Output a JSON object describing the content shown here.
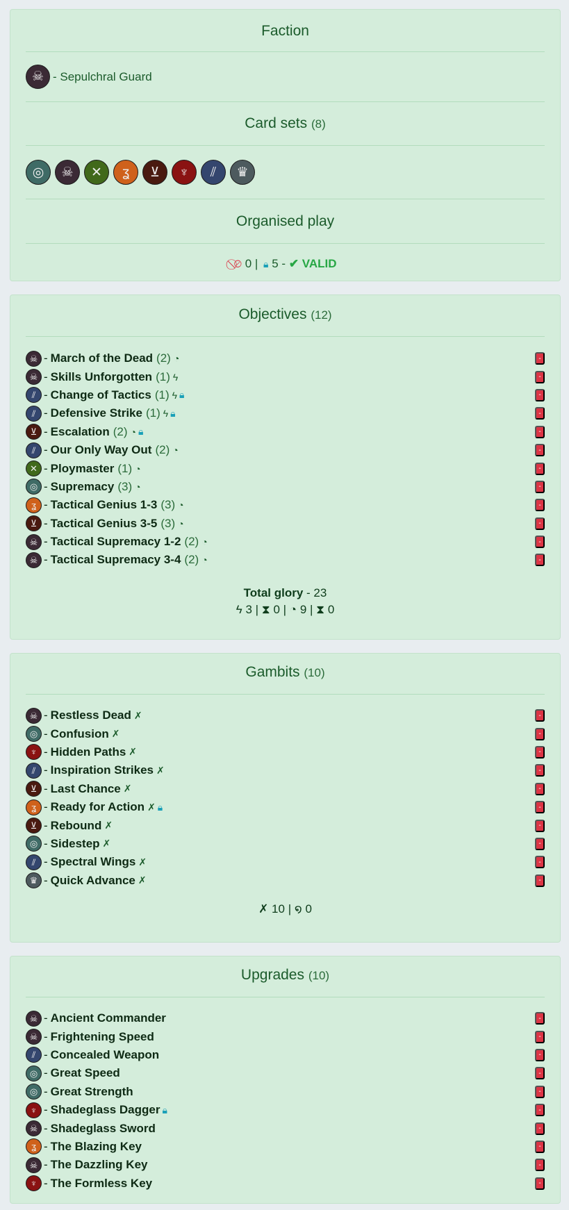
{
  "sets": {
    "target": {
      "icon": "target-icon",
      "color": "#3f6b66"
    },
    "skull": {
      "icon": "skull-icon",
      "color": "#3b2a35"
    },
    "axes": {
      "icon": "crossed-axes-icon",
      "color": "#41691b"
    },
    "zig": {
      "icon": "zigzag-icon",
      "color": "#cf611b"
    },
    "rune": {
      "icon": "rune-icon",
      "color": "#4a1a10"
    },
    "fang": {
      "icon": "fang-icon",
      "color": "#8a1212"
    },
    "bolt": {
      "icon": "bolt-icon",
      "color": "#34466e"
    },
    "crown": {
      "icon": "crown-icon",
      "color": "#4d5a5e"
    }
  },
  "faction": {
    "title": "Faction",
    "name": "- Sepulchral Guard",
    "set": "skull"
  },
  "card_sets": {
    "title": "Card sets",
    "count": "(8)",
    "items": [
      "target",
      "skull",
      "axes",
      "zig",
      "rune",
      "fang",
      "bolt",
      "crown"
    ]
  },
  "organised_play": {
    "title": "Organised play",
    "banned": "0",
    "restricted": "5",
    "status": "VALID",
    "colors": {
      "banned": "#dc3545",
      "restricted": "#1aa0b8",
      "valid": "#28a745"
    }
  },
  "objectives": {
    "title": "Objectives",
    "count": "(12)",
    "items": [
      {
        "set": "skull",
        "name": "March of the Dead",
        "glory": "(2)",
        "type": "end",
        "restricted": false
      },
      {
        "set": "skull",
        "name": "Skills Unforgotten",
        "glory": "(1)",
        "type": "surge",
        "restricted": false
      },
      {
        "set": "bolt",
        "name": "Change of Tactics",
        "glory": "(1)",
        "type": "surge",
        "restricted": true
      },
      {
        "set": "bolt",
        "name": "Defensive Strike",
        "glory": "(1)",
        "type": "surge",
        "restricted": true
      },
      {
        "set": "rune",
        "name": "Escalation",
        "glory": "(2)",
        "type": "end",
        "restricted": true
      },
      {
        "set": "bolt",
        "name": "Our Only Way Out",
        "glory": "(2)",
        "type": "end",
        "restricted": false
      },
      {
        "set": "axes",
        "name": "Ploymaster",
        "glory": "(1)",
        "type": "end",
        "restricted": false
      },
      {
        "set": "target",
        "name": "Supremacy",
        "glory": "(3)",
        "type": "end",
        "restricted": false
      },
      {
        "set": "zig",
        "name": "Tactical Genius 1-3",
        "glory": "(3)",
        "type": "end",
        "restricted": false
      },
      {
        "set": "rune",
        "name": "Tactical Genius 3-5",
        "glory": "(3)",
        "type": "end",
        "restricted": false
      },
      {
        "set": "skull",
        "name": "Tactical Supremacy 1-2",
        "glory": "(2)",
        "type": "end",
        "restricted": false
      },
      {
        "set": "skull",
        "name": "Tactical Supremacy 3-4",
        "glory": "(2)",
        "type": "end",
        "restricted": false
      }
    ],
    "total_label": "Total glory",
    "total": "- 23",
    "surge": "3",
    "third_start": "0",
    "end": "9",
    "third_end": "0"
  },
  "gambits": {
    "title": "Gambits",
    "count": "(10)",
    "items": [
      {
        "set": "skull",
        "name": "Restless Dead",
        "restricted": false
      },
      {
        "set": "target",
        "name": "Confusion",
        "restricted": false
      },
      {
        "set": "fang",
        "name": "Hidden Paths",
        "restricted": false
      },
      {
        "set": "bolt",
        "name": "Inspiration Strikes",
        "restricted": false
      },
      {
        "set": "rune",
        "name": "Last Chance",
        "restricted": false
      },
      {
        "set": "zig",
        "name": "Ready for Action",
        "restricted": true
      },
      {
        "set": "rune",
        "name": "Rebound",
        "restricted": false
      },
      {
        "set": "target",
        "name": "Sidestep",
        "restricted": false
      },
      {
        "set": "bolt",
        "name": "Spectral Wings",
        "restricted": false
      },
      {
        "set": "crown",
        "name": "Quick Advance",
        "restricted": false
      }
    ],
    "ploys": "10",
    "spells": "0"
  },
  "upgrades": {
    "title": "Upgrades",
    "count": "(10)",
    "items": [
      {
        "set": "skull",
        "name": "Ancient Commander",
        "restricted": false
      },
      {
        "set": "skull",
        "name": "Frightening Speed",
        "restricted": false
      },
      {
        "set": "bolt",
        "name": "Concealed Weapon",
        "restricted": false
      },
      {
        "set": "target",
        "name": "Great Speed",
        "restricted": false
      },
      {
        "set": "target",
        "name": "Great Strength",
        "restricted": false
      },
      {
        "set": "fang",
        "name": "Shadeglass Dagger",
        "restricted": true
      },
      {
        "set": "skull",
        "name": "Shadeglass Sword",
        "restricted": false
      },
      {
        "set": "zig",
        "name": "The Blazing Key",
        "restricted": false
      },
      {
        "set": "skull",
        "name": "The Dazzling Key",
        "restricted": false
      },
      {
        "set": "fang",
        "name": "The Formless Key",
        "restricted": false
      }
    ]
  },
  "remove_label": "-"
}
